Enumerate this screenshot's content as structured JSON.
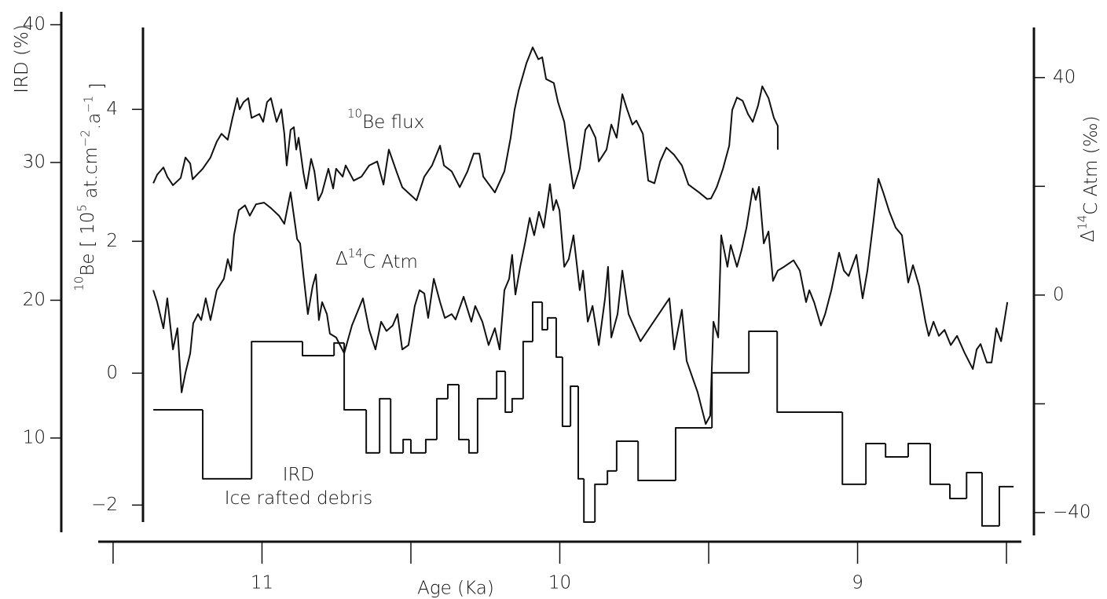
{
  "chart_data": {
    "type": "line",
    "xlabel": "Age (Ka)",
    "xlim": [
      11.55,
      8.45
    ],
    "xticks": [
      11,
      10,
      9
    ],
    "xminor_ticks": [
      11.5,
      10.5,
      9.5,
      8.5
    ],
    "ylabel": [
      {
        "text": "IRD (%)"
      }
    ],
    "ylim": [
      2.93,
      40.94
    ],
    "yticks": [
      10,
      20,
      30,
      40
    ],
    "y2label": [
      {
        "text": "10",
        "sup": true
      },
      {
        "text": "Be [ 10"
      },
      {
        "text": "5",
        "sup": true
      },
      {
        "text": " at.cm"
      },
      {
        "text": "−2",
        "sup": true
      },
      {
        "text": ".a"
      },
      {
        "text": "−1",
        "sup": true
      },
      {
        "text": " ]"
      }
    ],
    "y2lim": [
      -2.46,
      5.48
    ],
    "y2ticks": [
      {
        "value": -2,
        "label": "−2"
      },
      0,
      2,
      4
    ],
    "y3label": [
      {
        "text": "Δ"
      },
      {
        "text": "14",
        "sup": true
      },
      {
        "text": "C  Atm (‰)"
      }
    ],
    "y3lim": [
      -44.2,
      52.1
    ],
    "y3ticks": [
      {
        "value": -40,
        "label": "−40"
      },
      0,
      40
    ],
    "y3minor_ticks": [
      -20,
      20
    ],
    "series": [
      {
        "label_lines": [
          [
            {
              "text": "10",
              "sup": true
            },
            {
              "text": "Be flux"
            }
          ]
        ],
        "axis": "y2",
        "color": "#111",
        "x": [
          11.365,
          11.352,
          11.331,
          11.318,
          11.299,
          11.273,
          11.257,
          11.241,
          11.233,
          11.199,
          11.173,
          11.152,
          11.136,
          11.115,
          11.099,
          11.083,
          11.075,
          11.062,
          11.046,
          11.035,
          11.009,
          10.996,
          10.983,
          10.97,
          10.951,
          10.935,
          10.925,
          10.917,
          10.904,
          10.893,
          10.885,
          10.877,
          10.861,
          10.851,
          10.835,
          10.824,
          10.811,
          10.798,
          10.777,
          10.761,
          10.751,
          10.729,
          10.719,
          10.692,
          10.666,
          10.64,
          10.613,
          10.592,
          10.574,
          10.547,
          10.529,
          10.481,
          10.455,
          10.429,
          10.402,
          10.389,
          10.363,
          10.336,
          10.31,
          10.289,
          10.27,
          10.257,
          10.218,
          10.186,
          10.165,
          10.152,
          10.138,
          10.112,
          10.091,
          10.072,
          10.059,
          10.046,
          10.02,
          10.006,
          9.985,
          9.967,
          9.954,
          9.933,
          9.914,
          9.901,
          9.88,
          9.869,
          9.843,
          9.827,
          9.809,
          9.79,
          9.774,
          9.756,
          9.743,
          9.721,
          9.703,
          9.682,
          9.663,
          9.642,
          9.616,
          9.59,
          9.568,
          9.532,
          9.505,
          9.492,
          9.473,
          9.452,
          9.431,
          9.421,
          9.405,
          9.386,
          9.368,
          9.352,
          9.334,
          9.32,
          9.299,
          9.281,
          9.268,
          9.268
        ],
        "values": [
          2.88,
          3.01,
          3.12,
          2.98,
          2.85,
          2.96,
          3.27,
          3.18,
          2.94,
          3.1,
          3.27,
          3.51,
          3.63,
          3.54,
          3.87,
          4.17,
          4.0,
          4.11,
          4.17,
          3.87,
          3.93,
          3.81,
          4.11,
          4.17,
          3.81,
          4.0,
          3.63,
          3.15,
          3.69,
          3.73,
          3.39,
          3.57,
          3.04,
          2.8,
          3.25,
          3.06,
          2.62,
          2.74,
          3.1,
          2.8,
          3.1,
          2.98,
          3.15,
          2.92,
          2.98,
          3.15,
          3.21,
          2.86,
          3.39,
          3.04,
          2.82,
          2.62,
          2.98,
          3.15,
          3.45,
          3.15,
          3.06,
          2.82,
          3.06,
          3.33,
          3.33,
          2.98,
          2.74,
          3.06,
          3.57,
          3.99,
          4.29,
          4.7,
          4.94,
          4.76,
          4.79,
          4.46,
          4.4,
          4.11,
          3.81,
          3.21,
          2.8,
          3.1,
          3.69,
          3.77,
          3.57,
          3.21,
          3.39,
          3.77,
          3.57,
          4.23,
          4.0,
          3.77,
          3.83,
          3.63,
          2.92,
          2.88,
          3.21,
          3.42,
          3.31,
          3.15,
          2.86,
          2.74,
          2.64,
          2.65,
          2.82,
          3.1,
          3.45,
          3.99,
          4.18,
          4.13,
          3.93,
          3.81,
          4.06,
          4.35,
          4.17,
          3.87,
          3.75,
          3.39
        ]
      },
      {
        "label_lines": [
          [
            {
              "text": "Δ"
            },
            {
              "text": "14",
              "sup": true
            },
            {
              "text": "C  Atm"
            }
          ]
        ],
        "axis": "y3",
        "color": "#111",
        "x": [
          11.365,
          11.352,
          11.331,
          11.318,
          11.299,
          11.284,
          11.27,
          11.257,
          11.241,
          11.231,
          11.215,
          11.204,
          11.189,
          11.173,
          11.152,
          11.128,
          11.115,
          11.104,
          11.094,
          11.078,
          11.057,
          11.041,
          11.02,
          10.993,
          10.97,
          10.943,
          10.925,
          10.904,
          10.882,
          10.872,
          10.861,
          10.846,
          10.83,
          10.819,
          10.809,
          10.798,
          10.782,
          10.772,
          10.751,
          10.724,
          10.698,
          10.661,
          10.64,
          10.619,
          10.6,
          10.582,
          10.561,
          10.545,
          10.529,
          10.508,
          10.487,
          10.471,
          10.455,
          10.442,
          10.423,
          10.402,
          10.386,
          10.363,
          10.35,
          10.323,
          10.297,
          10.284,
          10.26,
          10.239,
          10.218,
          10.202,
          10.186,
          10.17,
          10.16,
          10.149,
          10.133,
          10.117,
          10.101,
          10.086,
          10.07,
          10.054,
          10.033,
          10.022,
          10.012,
          10.001,
          9.985,
          9.97,
          9.954,
          9.933,
          9.922,
          9.906,
          9.89,
          9.869,
          9.848,
          9.838,
          9.827,
          9.806,
          9.79,
          9.769,
          9.729,
          9.632,
          9.616,
          9.59,
          9.574,
          9.537,
          9.51,
          9.495,
          9.484,
          9.468,
          9.458,
          9.437,
          9.426,
          9.405,
          9.389,
          9.373,
          9.352,
          9.342,
          9.331,
          9.315,
          9.299,
          9.284,
          9.268,
          9.247,
          9.215,
          9.194,
          9.173,
          9.162,
          9.146,
          9.123,
          9.109,
          9.088,
          9.062,
          9.046,
          9.03,
          9.004,
          8.983,
          8.967,
          8.946,
          8.93,
          8.914,
          8.893,
          8.872,
          8.851,
          8.83,
          8.814,
          8.793,
          8.772,
          8.761,
          8.745,
          8.727,
          8.708,
          8.687,
          8.666,
          8.64,
          8.613,
          8.6,
          8.587,
          8.566,
          8.55,
          8.534,
          8.518,
          8.497
        ],
        "values": [
          0.9,
          -1.3,
          -6.1,
          -0.6,
          -10.0,
          -6.1,
          -17.9,
          -14.3,
          -10.7,
          -5.2,
          -3.5,
          -4.6,
          -0.6,
          -4.6,
          0.9,
          3.0,
          6.6,
          4.5,
          11.0,
          15.6,
          16.5,
          14.6,
          16.7,
          17.0,
          16.0,
          14.6,
          13.1,
          18.9,
          10.3,
          9.5,
          3.8,
          -3.5,
          1.6,
          3.8,
          -4.6,
          -1.3,
          -3.5,
          -7.1,
          -7.8,
          -10.7,
          -5.6,
          -0.6,
          -6.4,
          -10.0,
          -4.9,
          -6.6,
          -5.6,
          -3.5,
          -10.0,
          -9.2,
          -2.0,
          0.9,
          0.3,
          -4.2,
          3.0,
          -1.3,
          -4.2,
          -3.5,
          -4.5,
          -0.3,
          -4.9,
          -2.0,
          -4.9,
          -9.2,
          -6.1,
          -10.0,
          0.9,
          3.0,
          7.4,
          0.1,
          5.2,
          9.5,
          14.2,
          11.0,
          15.3,
          12.4,
          20.4,
          15.6,
          17.5,
          15.6,
          5.2,
          6.6,
          11.0,
          0.9,
          4.5,
          -4.9,
          -2.0,
          -9.2,
          -0.6,
          5.2,
          -7.8,
          -3.5,
          4.5,
          -3.5,
          -8.5,
          -0.6,
          -10.0,
          -2.7,
          -12.1,
          -17.9,
          -23.7,
          -22.2,
          -4.9,
          -7.8,
          11.0,
          5.2,
          9.2,
          5.2,
          8.4,
          12.4,
          19.6,
          17.5,
          19.9,
          9.5,
          11.7,
          2.6,
          4.5,
          5.2,
          6.4,
          4.5,
          -1.3,
          0.9,
          -1.3,
          -5.6,
          -3.5,
          0.9,
          7.8,
          4.5,
          3.5,
          7.4,
          -0.6,
          4.5,
          13.9,
          21.4,
          18.9,
          15.3,
          12.4,
          11.0,
          2.3,
          5.5,
          1.6,
          -4.9,
          -7.5,
          -4.9,
          -7.5,
          -6.4,
          -9.2,
          -7.5,
          -10.7,
          -13.6,
          -10.0,
          -9.0,
          -12.4,
          -12.4,
          -6.1,
          -8.5,
          -1.3
        ]
      },
      {
        "label_lines": [
          [
            {
              "text": "IRD"
            }
          ],
          [
            {
              "text": "Ice rafted debris"
            }
          ]
        ],
        "axis": "y",
        "color": "#111",
        "step": "post",
        "x": [
          11.365,
          11.199,
          11.035,
          10.864,
          10.758,
          10.724,
          10.65,
          10.605,
          10.568,
          10.526,
          10.5,
          10.45,
          10.413,
          10.376,
          10.339,
          10.305,
          10.276,
          10.212,
          10.183,
          10.16,
          10.123,
          10.091,
          10.059,
          10.041,
          10.012,
          9.991,
          9.964,
          9.938,
          9.919,
          9.882,
          9.84,
          9.809,
          9.737,
          9.611,
          9.489,
          9.365,
          9.27,
          9.051,
          8.972,
          8.906,
          8.83,
          8.756,
          8.69,
          8.634,
          8.582,
          8.524,
          8.476
        ],
        "values": [
          12.05,
          7.04,
          17.0,
          15.98,
          16.9,
          12.05,
          8.92,
          12.85,
          8.92,
          9.89,
          8.92,
          9.89,
          12.85,
          13.87,
          9.89,
          8.92,
          12.85,
          14.84,
          11.88,
          12.85,
          17.0,
          19.86,
          17.86,
          18.72,
          15.87,
          10.85,
          13.76,
          7.04,
          3.9,
          6.64,
          7.61,
          9.77,
          6.92,
          10.74,
          14.73,
          17.75,
          11.88,
          6.64,
          9.6,
          8.63,
          9.6,
          6.64,
          5.61,
          7.49,
          3.62,
          6.47,
          6.47
        ]
      }
    ]
  }
}
